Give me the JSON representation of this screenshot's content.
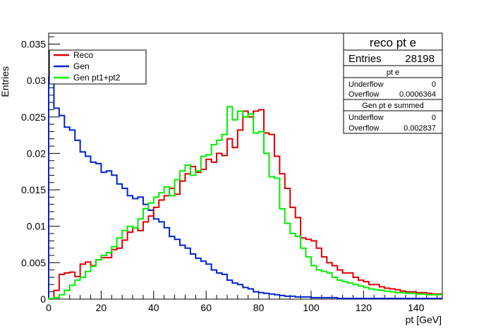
{
  "chart_data": {
    "type": "line",
    "title": "",
    "xlabel": "pt [GeV]",
    "ylabel": "Entries",
    "xlim": [
      0,
      150
    ],
    "ylim": [
      0,
      0.0365
    ],
    "bin_width": 2,
    "xticks": [
      0,
      20,
      40,
      60,
      80,
      100,
      120,
      140
    ],
    "yticks": [
      0,
      0.005,
      0.01,
      0.015,
      0.02,
      0.025,
      0.03,
      0.035
    ],
    "xtick_labels": [
      "0",
      "20",
      "40",
      "60",
      "80",
      "100",
      "120",
      "140"
    ],
    "ytick_labels": [
      "0",
      "0.005",
      "0.01",
      "0.015",
      "0.02",
      "0.025",
      "0.03",
      "0.035"
    ],
    "grid": false,
    "legend_position": "top-left",
    "legend": [
      "Reco",
      "Gen",
      "Gen pt1+pt2"
    ],
    "series": [
      {
        "name": "Reco",
        "color": "#dd0000",
        "values": [
          0.0001,
          0.0012,
          0.0034,
          0.0036,
          0.0037,
          0.0031,
          0.0048,
          0.0051,
          0.0046,
          0.0054,
          0.0057,
          0.0057,
          0.0068,
          0.007,
          0.0081,
          0.0092,
          0.0098,
          0.0094,
          0.0106,
          0.0114,
          0.0126,
          0.0136,
          0.0142,
          0.0152,
          0.0144,
          0.0162,
          0.0172,
          0.0182,
          0.0174,
          0.0178,
          0.0192,
          0.0188,
          0.02,
          0.0197,
          0.022,
          0.0208,
          0.0232,
          0.0258,
          0.025,
          0.0258,
          0.026,
          0.0228,
          0.0226,
          0.0196,
          0.0172,
          0.0152,
          0.0126,
          0.0112,
          0.0084,
          0.0082,
          0.008,
          0.007,
          0.0058,
          0.005,
          0.0046,
          0.004,
          0.0036,
          0.0036,
          0.003,
          0.0026,
          0.0024,
          0.002,
          0.002,
          0.0017,
          0.0015,
          0.0014,
          0.0013,
          0.0011,
          0.001,
          0.001,
          0.0009,
          0.0009,
          0.0008,
          0.0007,
          0.0007
        ]
      },
      {
        "name": "Gen",
        "color": "#0022cc",
        "values": [
          0.0305,
          0.0262,
          0.0252,
          0.0236,
          0.0232,
          0.0218,
          0.0202,
          0.0196,
          0.0188,
          0.0186,
          0.0174,
          0.0176,
          0.017,
          0.0158,
          0.0152,
          0.0142,
          0.0138,
          0.014,
          0.013,
          0.0122,
          0.011,
          0.0106,
          0.0098,
          0.0086,
          0.0082,
          0.0074,
          0.007,
          0.0062,
          0.0056,
          0.0052,
          0.0048,
          0.004,
          0.0036,
          0.0034,
          0.0026,
          0.0022,
          0.002,
          0.0016,
          0.0014,
          0.001,
          0.0009,
          0.0008,
          0.0007,
          0.0006,
          0.0005,
          0.0004,
          0.0004,
          0.0003,
          0.0003,
          0.0003,
          0.0002,
          0.0002,
          0.0002,
          0.0002,
          0.0002,
          0.0001,
          0.0001,
          0.0001,
          0.0001,
          0.0001,
          0.0001,
          0.0001,
          0.0001,
          0.0001,
          0.0001,
          0.0001,
          0.0001,
          0.0001,
          0.0001,
          0.0001,
          0.0001,
          0.0001,
          0.0001,
          0.0001,
          0.0001
        ]
      },
      {
        "name": "Gen pt1+pt2",
        "color": "#00ee00",
        "values": [
          0.0001,
          0.0002,
          0.0006,
          0.0012,
          0.0019,
          0.0026,
          0.003,
          0.0038,
          0.0045,
          0.0054,
          0.006,
          0.0064,
          0.0072,
          0.0084,
          0.0094,
          0.01,
          0.0098,
          0.011,
          0.0124,
          0.0132,
          0.014,
          0.0146,
          0.0154,
          0.0142,
          0.0164,
          0.0176,
          0.0184,
          0.017,
          0.0176,
          0.0196,
          0.0198,
          0.0212,
          0.0218,
          0.0226,
          0.0264,
          0.0246,
          0.0258,
          0.025,
          0.0254,
          0.0228,
          0.023,
          0.02,
          0.0168,
          0.0166,
          0.0124,
          0.0104,
          0.009,
          0.0086,
          0.007,
          0.0058,
          0.0046,
          0.004,
          0.0038,
          0.0036,
          0.003,
          0.0026,
          0.0024,
          0.0022,
          0.002,
          0.0018,
          0.0016,
          0.0014,
          0.0013,
          0.0012,
          0.0011,
          0.001,
          0.0009,
          0.0009,
          0.0008,
          0.0008,
          0.0007,
          0.0007,
          0.0006,
          0.0006,
          0.0006
        ]
      }
    ]
  },
  "stats_box": {
    "title": "reco pt e",
    "entries_label": "Entries",
    "entries_value": "28198",
    "section1_title": "pt e",
    "section1_underflow_label": "Underflow",
    "section1_underflow_value": "0",
    "section1_overflow_label": "Overflow",
    "section1_overflow_value": "0.0006364",
    "section2_title": "Gen pt e summed",
    "section2_underflow_label": "Underflow",
    "section2_underflow_value": "0",
    "section2_overflow_label": "Overflow",
    "section2_overflow_value": "0.002837"
  }
}
